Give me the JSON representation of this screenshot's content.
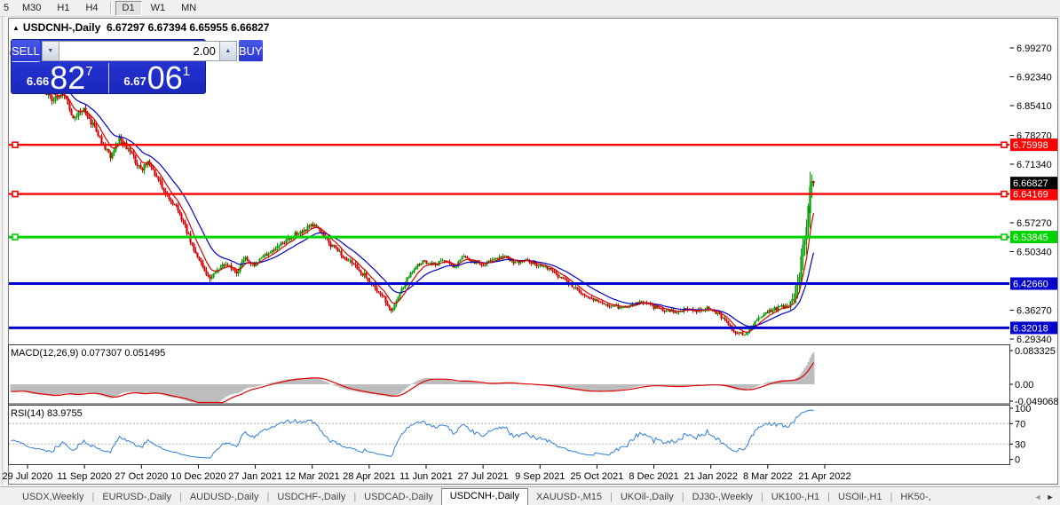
{
  "toolbar": {
    "timeframes": [
      "5",
      "M30",
      "H1",
      "H4",
      "D1",
      "W1",
      "MN"
    ],
    "active": "D1"
  },
  "chart": {
    "collapse_icon": "▲",
    "title_symbol": "USDCNH-,Daily",
    "title_ohlc": "6.67297 6.67394 6.65955 6.66827"
  },
  "trade_panel": {
    "sell_label": "SELL",
    "buy_label": "BUY",
    "volume": "2.00",
    "spin_down_icon": "▼",
    "spin_up_icon": "▲",
    "sell_price": {
      "small": "6.66",
      "big": "82",
      "sup": "7"
    },
    "buy_price": {
      "small": "6.67",
      "big": "06",
      "sup": "1"
    }
  },
  "colors": {
    "candle_up": "#00a000",
    "candle_down": "#d80000",
    "ma_fast": "#d40000",
    "ma_slow": "#0000c8",
    "macd_hist": "#bdbdbd",
    "macd_signal": "#e00000",
    "rsi_line": "#2f7ed8",
    "badge_black": "#000000"
  },
  "chart_data": [
    {
      "type": "candlestick",
      "title": "USDCNH-,Daily",
      "ohlc_current": {
        "o": 6.67297,
        "h": 6.67394,
        "l": 6.65955,
        "c": 6.66827
      },
      "y_axis_ticks": [
        "6.99270",
        "6.92340",
        "6.85410",
        "6.78270",
        "6.71340",
        "6.57270",
        "6.50340",
        "6.36270",
        "6.29340"
      ],
      "x_axis_dates": [
        "29 Jul 2020",
        "11 Sep 2020",
        "27 Oct 2020",
        "10 Dec 2020",
        "27 Jan 2021",
        "12 Mar 2021",
        "28 Apr 2021",
        "11 Jun 2021",
        "27 Jul 2021",
        "9 Sep 2021",
        "25 Oct 2021",
        "8 Dec 2021",
        "21 Jan 2022",
        "8 Mar 2022",
        "21 Apr 2022"
      ],
      "horizontal_levels": [
        {
          "price": 6.75998,
          "label": "6.75998",
          "color": "#ff0000",
          "width": 2.4,
          "anchor": true
        },
        {
          "price": 6.64169,
          "label": "6.64169",
          "color": "#ff0000",
          "width": 2.4,
          "anchor": true
        },
        {
          "price": 6.53845,
          "label": "6.53845",
          "color": "#00d400",
          "width": 3,
          "anchor": true
        },
        {
          "price": 6.4266,
          "label": "6.42660",
          "color": "#0000cc",
          "width": 3,
          "anchor": false
        },
        {
          "price": 6.32018,
          "label": "6.32018",
          "color": "#0000cc",
          "width": 3,
          "anchor": false
        }
      ],
      "current_price_label": "6.66827",
      "price_path": [
        [
          12,
          6.98
        ],
        [
          24,
          6.955
        ],
        [
          36,
          6.92
        ],
        [
          48,
          6.898
        ],
        [
          58,
          6.868
        ],
        [
          70,
          6.885
        ],
        [
          82,
          6.828
        ],
        [
          94,
          6.843
        ],
        [
          106,
          6.801
        ],
        [
          116,
          6.758
        ],
        [
          124,
          6.732
        ],
        [
          134,
          6.778
        ],
        [
          146,
          6.744
        ],
        [
          158,
          6.7
        ],
        [
          166,
          6.718
        ],
        [
          176,
          6.68
        ],
        [
          188,
          6.638
        ],
        [
          198,
          6.612
        ],
        [
          210,
          6.552
        ],
        [
          218,
          6.51
        ],
        [
          226,
          6.472
        ],
        [
          236,
          6.44
        ],
        [
          246,
          6.462
        ],
        [
          256,
          6.475
        ],
        [
          266,
          6.452
        ],
        [
          276,
          6.488
        ],
        [
          286,
          6.468
        ],
        [
          298,
          6.495
        ],
        [
          310,
          6.512
        ],
        [
          322,
          6.53
        ],
        [
          334,
          6.548
        ],
        [
          346,
          6.56
        ],
        [
          354,
          6.568
        ],
        [
          362,
          6.548
        ],
        [
          372,
          6.52
        ],
        [
          382,
          6.5
        ],
        [
          392,
          6.482
        ],
        [
          402,
          6.464
        ],
        [
          412,
          6.442
        ],
        [
          422,
          6.418
        ],
        [
          432,
          6.392
        ],
        [
          440,
          6.364
        ],
        [
          448,
          6.392
        ],
        [
          458,
          6.438
        ],
        [
          466,
          6.464
        ],
        [
          476,
          6.48
        ],
        [
          490,
          6.472
        ],
        [
          500,
          6.484
        ],
        [
          512,
          6.466
        ],
        [
          520,
          6.492
        ],
        [
          532,
          6.48
        ],
        [
          544,
          6.472
        ],
        [
          556,
          6.488
        ],
        [
          568,
          6.494
        ],
        [
          580,
          6.476
        ],
        [
          592,
          6.482
        ],
        [
          604,
          6.472
        ],
        [
          616,
          6.464
        ],
        [
          628,
          6.446
        ],
        [
          640,
          6.428
        ],
        [
          652,
          6.408
        ],
        [
          664,
          6.392
        ],
        [
          676,
          6.382
        ],
        [
          688,
          6.374
        ],
        [
          700,
          6.368
        ],
        [
          712,
          6.376
        ],
        [
          724,
          6.382
        ],
        [
          736,
          6.37
        ],
        [
          748,
          6.364
        ],
        [
          760,
          6.358
        ],
        [
          772,
          6.366
        ],
        [
          784,
          6.36
        ],
        [
          796,
          6.368
        ],
        [
          808,
          6.354
        ],
        [
          818,
          6.332
        ],
        [
          828,
          6.31
        ],
        [
          838,
          6.304
        ],
        [
          848,
          6.328
        ],
        [
          858,
          6.35
        ],
        [
          868,
          6.362
        ],
        [
          878,
          6.37
        ],
        [
          888,
          6.374
        ],
        [
          894,
          6.398
        ],
        [
          900,
          6.452
        ],
        [
          904,
          6.512
        ],
        [
          908,
          6.562
        ],
        [
          912,
          6.658
        ],
        [
          916,
          6.668
        ]
      ]
    },
    {
      "type": "line",
      "name": "MACD",
      "label": "MACD(12,26,9) 0.077307 0.051495",
      "params": [
        12,
        26,
        9
      ],
      "current_values": [
        0.077307,
        0.051495
      ],
      "y_ticks": [
        {
          "label": "0.083325",
          "y": 395
        },
        {
          "label": "0.00",
          "y": 433
        },
        {
          "label": "-0.049068",
          "y": 452
        }
      ]
    },
    {
      "type": "line",
      "name": "RSI",
      "label": "RSI(14) 83.9755",
      "period": 14,
      "current_value": 83.9755,
      "y_ticks": [
        {
          "label": "100",
          "value": 100
        },
        {
          "label": "70",
          "value": 70
        },
        {
          "label": "30",
          "value": 30
        },
        {
          "label": "0",
          "value": 0
        }
      ],
      "dashed_levels": [
        70,
        30
      ]
    }
  ],
  "tabs": {
    "items": [
      "USDX,Weekly",
      "EURUSD-,Daily",
      "AUDUSD-,Daily",
      "USDCHF-,Daily",
      "USDCAD-,Daily",
      "USDCNH-,Daily",
      "XAUUSD-,M15",
      "UKOil-,Daily",
      "DJ30-,Weekly",
      "UK100-,H1",
      "USOil-,H1",
      "HK50-,"
    ],
    "active": "USDCNH-,Daily",
    "scroll_left": "◄",
    "scroll_right": "►"
  }
}
